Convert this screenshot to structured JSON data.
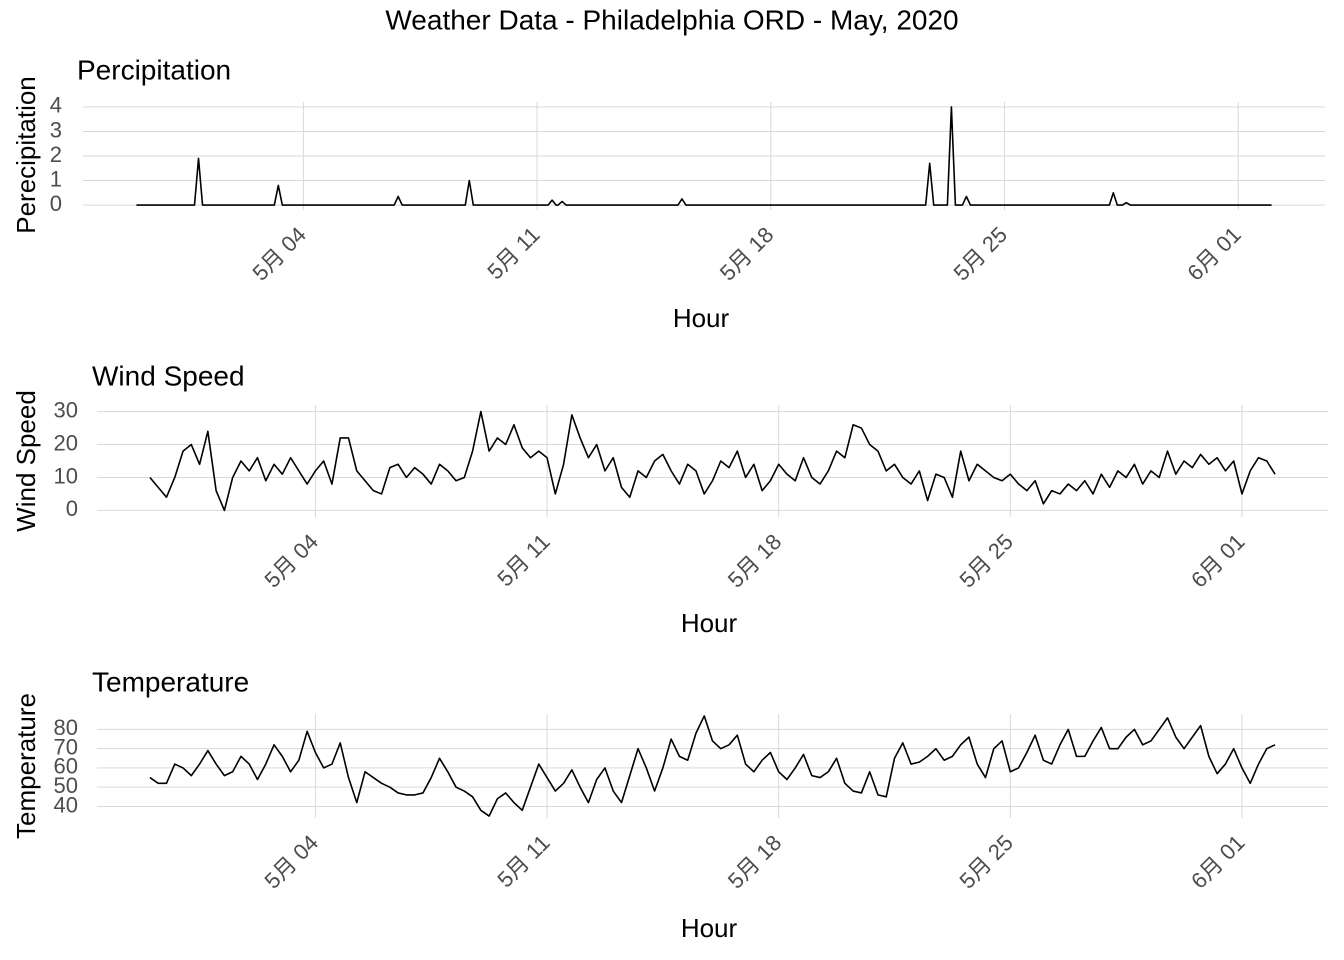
{
  "title": "Weather Data - Philadelphia ORD - May, 2020",
  "chart_data": [
    {
      "type": "line",
      "title": "Percipitation",
      "xlabel": "Hour",
      "ylabel": "Perecipitation",
      "color": "#000000",
      "grid": true,
      "xlim": [
        -2.6,
        34.6
      ],
      "ylim": [
        -0.2,
        4.2
      ],
      "yticks": [
        0,
        1,
        2,
        3,
        4
      ],
      "xticks": [
        {
          "value": 4,
          "label": "5月 04"
        },
        {
          "value": 11,
          "label": "5月 11"
        },
        {
          "value": 18,
          "label": "5月 18"
        },
        {
          "value": 25,
          "label": "5月 25"
        },
        {
          "value": 32,
          "label": "6月 01"
        }
      ],
      "x": [
        -1,
        0.74,
        0.86,
        0.98,
        3.13,
        3.25,
        3.37,
        6.72,
        6.84,
        6.96,
        8.85,
        8.97,
        9.09,
        11.33,
        11.45,
        11.57,
        11.63,
        11.75,
        11.87,
        15.22,
        15.34,
        15.46,
        22.64,
        22.76,
        22.88,
        23.29,
        23.41,
        23.53,
        23.74,
        23.86,
        23.98,
        28.14,
        28.26,
        28.38,
        28.53,
        28.65,
        28.77,
        33
      ],
      "values": [
        0,
        0,
        1.9,
        0,
        0,
        0.8,
        0,
        0,
        0.35,
        0,
        0,
        1,
        0,
        0,
        0.2,
        0,
        0,
        0.15,
        0,
        0,
        0.25,
        0,
        0,
        1.7,
        0,
        0,
        4,
        0,
        0,
        0.35,
        0,
        0,
        0.5,
        0,
        0,
        0.1,
        0,
        0
      ]
    },
    {
      "type": "line",
      "title": "Wind Speed",
      "xlabel": "Hour",
      "ylabel": "Wind Speed",
      "color": "#000000",
      "grid": true,
      "xlim": [
        -2.6,
        34.6
      ],
      "ylim": [
        -2,
        32
      ],
      "yticks": [
        0,
        10,
        20,
        30
      ],
      "xticks": [
        {
          "value": 4,
          "label": "5月 04"
        },
        {
          "value": 11,
          "label": "5月 11"
        },
        {
          "value": 18,
          "label": "5月 18"
        },
        {
          "value": 25,
          "label": "5月 25"
        },
        {
          "value": 32,
          "label": "6月 01"
        }
      ],
      "x": [
        -1,
        -0.75,
        -0.5,
        -0.25,
        0,
        0.25,
        0.5,
        0.75,
        1,
        1.25,
        1.5,
        1.75,
        2,
        2.25,
        2.5,
        2.75,
        3,
        3.25,
        3.5,
        3.75,
        4,
        4.25,
        4.5,
        4.75,
        5,
        5.25,
        5.5,
        5.75,
        6,
        6.25,
        6.5,
        6.75,
        7,
        7.25,
        7.5,
        7.75,
        8,
        8.25,
        8.5,
        8.75,
        9,
        9.25,
        9.5,
        9.75,
        10,
        10.25,
        10.5,
        10.75,
        11,
        11.25,
        11.5,
        11.75,
        12,
        12.25,
        12.5,
        12.75,
        13,
        13.25,
        13.5,
        13.75,
        14,
        14.25,
        14.5,
        14.75,
        15,
        15.25,
        15.5,
        15.75,
        16,
        16.25,
        16.5,
        16.75,
        17,
        17.25,
        17.5,
        17.75,
        18,
        18.25,
        18.5,
        18.75,
        19,
        19.25,
        19.5,
        19.75,
        20,
        20.25,
        20.5,
        20.75,
        21,
        21.25,
        21.5,
        21.75,
        22,
        22.25,
        22.5,
        22.75,
        23,
        23.25,
        23.5,
        23.75,
        24,
        24.25,
        24.5,
        24.75,
        25,
        25.25,
        25.5,
        25.75,
        26,
        26.25,
        26.5,
        26.75,
        27,
        27.25,
        27.5,
        27.75,
        28,
        28.25,
        28.5,
        28.75,
        29,
        29.25,
        29.5,
        29.75,
        30,
        30.25,
        30.5,
        30.75,
        31,
        31.25,
        31.5,
        31.75,
        32,
        32.25,
        32.5,
        32.75,
        33
      ],
      "values": [
        10,
        7,
        4,
        10,
        18,
        20,
        14,
        24,
        6,
        0,
        10,
        15,
        12,
        16,
        9,
        14,
        11,
        16,
        12,
        8,
        12,
        15,
        8,
        22,
        22,
        12,
        9,
        6,
        5,
        13,
        14,
        10,
        13,
        11,
        8,
        14,
        12,
        9,
        10,
        18,
        30,
        18,
        22,
        20,
        26,
        19,
        16,
        18,
        16,
        5,
        14,
        29,
        22,
        16,
        20,
        12,
        16,
        7,
        4,
        12,
        10,
        15,
        17,
        12,
        8,
        14,
        12,
        5,
        9,
        15,
        13,
        18,
        10,
        14,
        6,
        9,
        14,
        11,
        9,
        16,
        10,
        8,
        12,
        18,
        16,
        26,
        25,
        20,
        18,
        12,
        14,
        10,
        8,
        12,
        3,
        11,
        10,
        4,
        18,
        9,
        14,
        12,
        10,
        9,
        11,
        8,
        6,
        9,
        2,
        6,
        5,
        8,
        6,
        9,
        5,
        11,
        7,
        12,
        10,
        14,
        8,
        12,
        10,
        18,
        11,
        15,
        13,
        17,
        14,
        16,
        12,
        15,
        5,
        12,
        16,
        15,
        11
      ]
    },
    {
      "type": "line",
      "title": "Temperature",
      "xlabel": "Hour",
      "ylabel": "Temperature",
      "color": "#000000",
      "grid": true,
      "xlim": [
        -2.6,
        34.6
      ],
      "ylim": [
        34,
        88
      ],
      "yticks": [
        40,
        50,
        60,
        70,
        80
      ],
      "xticks": [
        {
          "value": 4,
          "label": "5月 04"
        },
        {
          "value": 11,
          "label": "5月 11"
        },
        {
          "value": 18,
          "label": "5月 18"
        },
        {
          "value": 25,
          "label": "5月 25"
        },
        {
          "value": 32,
          "label": "6月 01"
        }
      ],
      "x": [
        -1,
        -0.75,
        -0.5,
        -0.25,
        0,
        0.25,
        0.5,
        0.75,
        1,
        1.25,
        1.5,
        1.75,
        2,
        2.25,
        2.5,
        2.75,
        3,
        3.25,
        3.5,
        3.75,
        4,
        4.25,
        4.5,
        4.75,
        5,
        5.25,
        5.5,
        5.75,
        6,
        6.25,
        6.5,
        6.75,
        7,
        7.25,
        7.5,
        7.75,
        8,
        8.25,
        8.5,
        8.75,
        9,
        9.25,
        9.5,
        9.75,
        10,
        10.25,
        10.5,
        10.75,
        11,
        11.25,
        11.5,
        11.75,
        12,
        12.25,
        12.5,
        12.75,
        13,
        13.25,
        13.5,
        13.75,
        14,
        14.25,
        14.5,
        14.75,
        15,
        15.25,
        15.5,
        15.75,
        16,
        16.25,
        16.5,
        16.75,
        17,
        17.25,
        17.5,
        17.75,
        18,
        18.25,
        18.5,
        18.75,
        19,
        19.25,
        19.5,
        19.75,
        20,
        20.25,
        20.5,
        20.75,
        21,
        21.25,
        21.5,
        21.75,
        22,
        22.25,
        22.5,
        22.75,
        23,
        23.25,
        23.5,
        23.75,
        24,
        24.25,
        24.5,
        24.75,
        25,
        25.25,
        25.5,
        25.75,
        26,
        26.25,
        26.5,
        26.75,
        27,
        27.25,
        27.5,
        27.75,
        28,
        28.25,
        28.5,
        28.75,
        29,
        29.25,
        29.5,
        29.75,
        30,
        30.25,
        30.5,
        30.75,
        31,
        31.25,
        31.5,
        31.75,
        32,
        32.25,
        32.5,
        32.75,
        33
      ],
      "values": [
        55,
        52,
        52,
        62,
        60,
        56,
        62,
        69,
        62,
        56,
        58,
        66,
        62,
        54,
        62,
        72,
        66,
        58,
        64,
        79,
        68,
        60,
        62,
        73,
        55,
        42,
        58,
        55,
        52,
        50,
        47,
        46,
        46,
        47,
        55,
        65,
        58,
        50,
        48,
        45,
        38,
        35,
        44,
        47,
        42,
        38,
        50,
        62,
        55,
        48,
        52,
        59,
        50,
        42,
        54,
        60,
        48,
        42,
        56,
        70,
        60,
        48,
        60,
        75,
        66,
        64,
        78,
        87,
        74,
        70,
        72,
        77,
        62,
        58,
        64,
        68,
        58,
        54,
        60,
        67,
        56,
        55,
        58,
        65,
        52,
        48,
        47,
        58,
        46,
        45,
        65,
        73,
        62,
        63,
        66,
        70,
        64,
        66,
        72,
        76,
        62,
        55,
        70,
        74,
        58,
        60,
        68,
        77,
        64,
        62,
        72,
        80,
        66,
        66,
        74,
        81,
        70,
        70,
        76,
        80,
        72,
        74,
        80,
        86,
        76,
        70,
        76,
        82,
        66,
        57,
        62,
        70,
        60,
        52,
        62,
        70,
        72
      ]
    }
  ]
}
